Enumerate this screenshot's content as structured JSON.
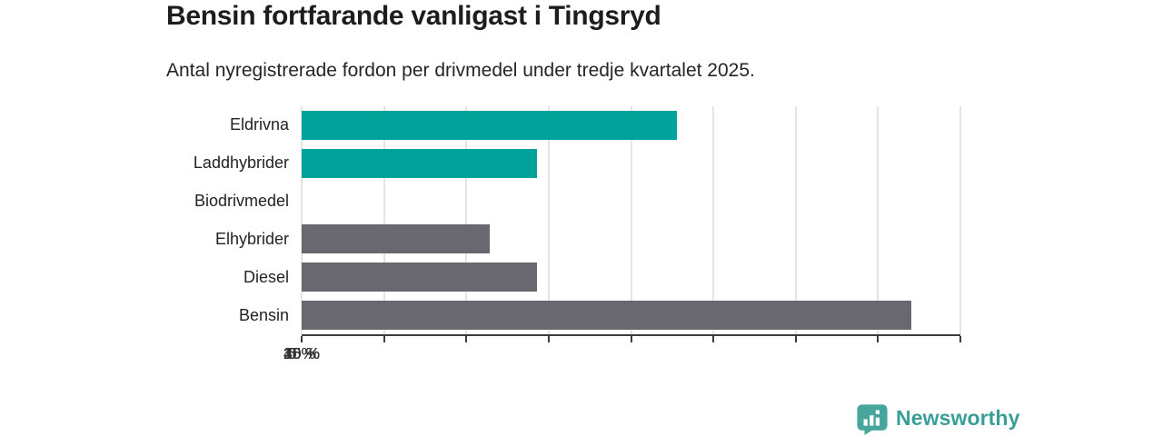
{
  "header": {
    "title": "Bensin fortfarande vanligast i Tingsryd",
    "subtitle": "Antal nyregistrerade fordon per drivmedel under tredje kvartalet 2025."
  },
  "chart_data": {
    "type": "bar",
    "orientation": "horizontal",
    "title": "Bensin fortfarande vanligast i Tingsryd",
    "subtitle": "Antal nyregistrerade fordon per drivmedel under tredje kvartalet 2025.",
    "categories": [
      "Eldrivna",
      "Laddhybrider",
      "Biodrivmedel",
      "Elhybrider",
      "Diesel",
      "Bensin"
    ],
    "values": [
      22.8,
      14.3,
      0,
      11.4,
      14.3,
      37.0
    ],
    "bar_colors": [
      "#00a29a",
      "#00a29a",
      "#696870",
      "#696870",
      "#696870",
      "#696870"
    ],
    "unit": "%",
    "xlim": [
      0,
      40
    ],
    "x_ticks": [
      0,
      5,
      10,
      15,
      20,
      25,
      30,
      35,
      40
    ],
    "x_tick_labels": [
      "0 %",
      "5 %",
      "10 %",
      "15 %",
      "20 %",
      "25 %",
      "30 %",
      "35 %",
      "40 %"
    ],
    "grid": true,
    "legend": "none"
  },
  "colors": {
    "highlight_bar": "#00a29a",
    "default_bar": "#696870",
    "gridline": "#e4e4e4",
    "axis": "#3d3d3d",
    "title_text": "#1d1d1b",
    "brand_teal": "#3a9e98",
    "brand_icon_teal": "#46a59d"
  },
  "branding": {
    "logo_text": "Newsworthy",
    "logo_icon": "bar-chart-pin-icon"
  }
}
